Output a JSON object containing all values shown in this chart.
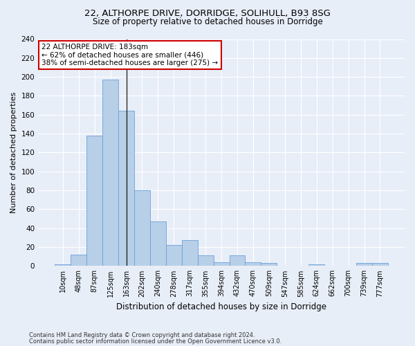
{
  "title_line1": "22, ALTHORPE DRIVE, DORRIDGE, SOLIHULL, B93 8SG",
  "title_line2": "Size of property relative to detached houses in Dorridge",
  "xlabel": "Distribution of detached houses by size in Dorridge",
  "ylabel": "Number of detached properties",
  "bar_labels": [
    "10sqm",
    "48sqm",
    "87sqm",
    "125sqm",
    "163sqm",
    "202sqm",
    "240sqm",
    "278sqm",
    "317sqm",
    "355sqm",
    "394sqm",
    "432sqm",
    "470sqm",
    "509sqm",
    "547sqm",
    "585sqm",
    "624sqm",
    "662sqm",
    "700sqm",
    "739sqm",
    "777sqm"
  ],
  "bar_values": [
    2,
    12,
    138,
    197,
    164,
    80,
    47,
    22,
    27,
    11,
    4,
    11,
    4,
    3,
    0,
    0,
    2,
    0,
    0,
    3,
    3
  ],
  "bar_color": "#b8cfe8",
  "bar_edge_color": "#6a9fd8",
  "annotation_text": "22 ALTHORPE DRIVE: 183sqm\n← 62% of detached houses are smaller (446)\n38% of semi-detached houses are larger (275) →",
  "annotation_box_color": "#ffffff",
  "annotation_box_edge": "#cc0000",
  "ylim": [
    0,
    240
  ],
  "yticks": [
    0,
    20,
    40,
    60,
    80,
    100,
    120,
    140,
    160,
    180,
    200,
    220,
    240
  ],
  "background_color": "#e8eef8",
  "grid_color": "#ffffff",
  "footer_line1": "Contains HM Land Registry data © Crown copyright and database right 2024.",
  "footer_line2": "Contains public sector information licensed under the Open Government Licence v3.0."
}
